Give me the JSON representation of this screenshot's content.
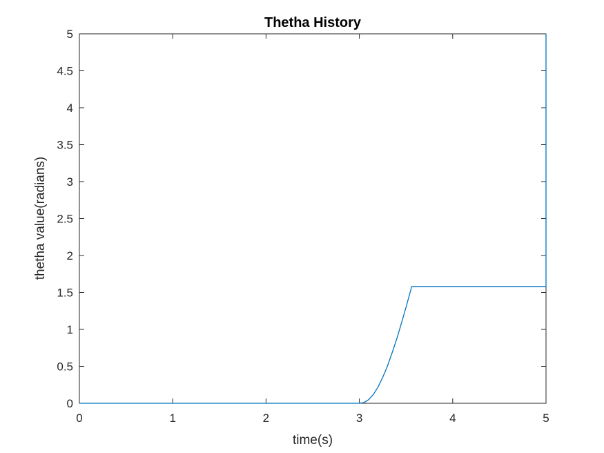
{
  "chart_data": {
    "type": "line",
    "title": "Thetha History",
    "xlabel": "time(s)",
    "ylabel": "thetha value(radians)",
    "xlim": [
      0,
      5
    ],
    "ylim": [
      0,
      5
    ],
    "xticks": [
      "0",
      "1",
      "2",
      "3",
      "4",
      "5"
    ],
    "yticks": [
      "0",
      "0.5",
      "1",
      "1.5",
      "2",
      "2.5",
      "3",
      "3.5",
      "4",
      "4.5",
      "5"
    ],
    "grid": false,
    "legend": "none",
    "series": [
      {
        "color": "#0072BD",
        "x": [
          0,
          3.0,
          3.05,
          3.1,
          3.15,
          3.2,
          3.25,
          3.3,
          3.35,
          3.4,
          3.45,
          3.5,
          3.55,
          3.56,
          4.0,
          4.5,
          5.0,
          5.0
        ],
        "y": [
          0,
          0,
          0.01,
          0.05,
          0.12,
          0.22,
          0.35,
          0.5,
          0.68,
          0.87,
          1.08,
          1.3,
          1.53,
          1.58,
          1.58,
          1.58,
          1.58,
          5.0
        ]
      }
    ]
  }
}
